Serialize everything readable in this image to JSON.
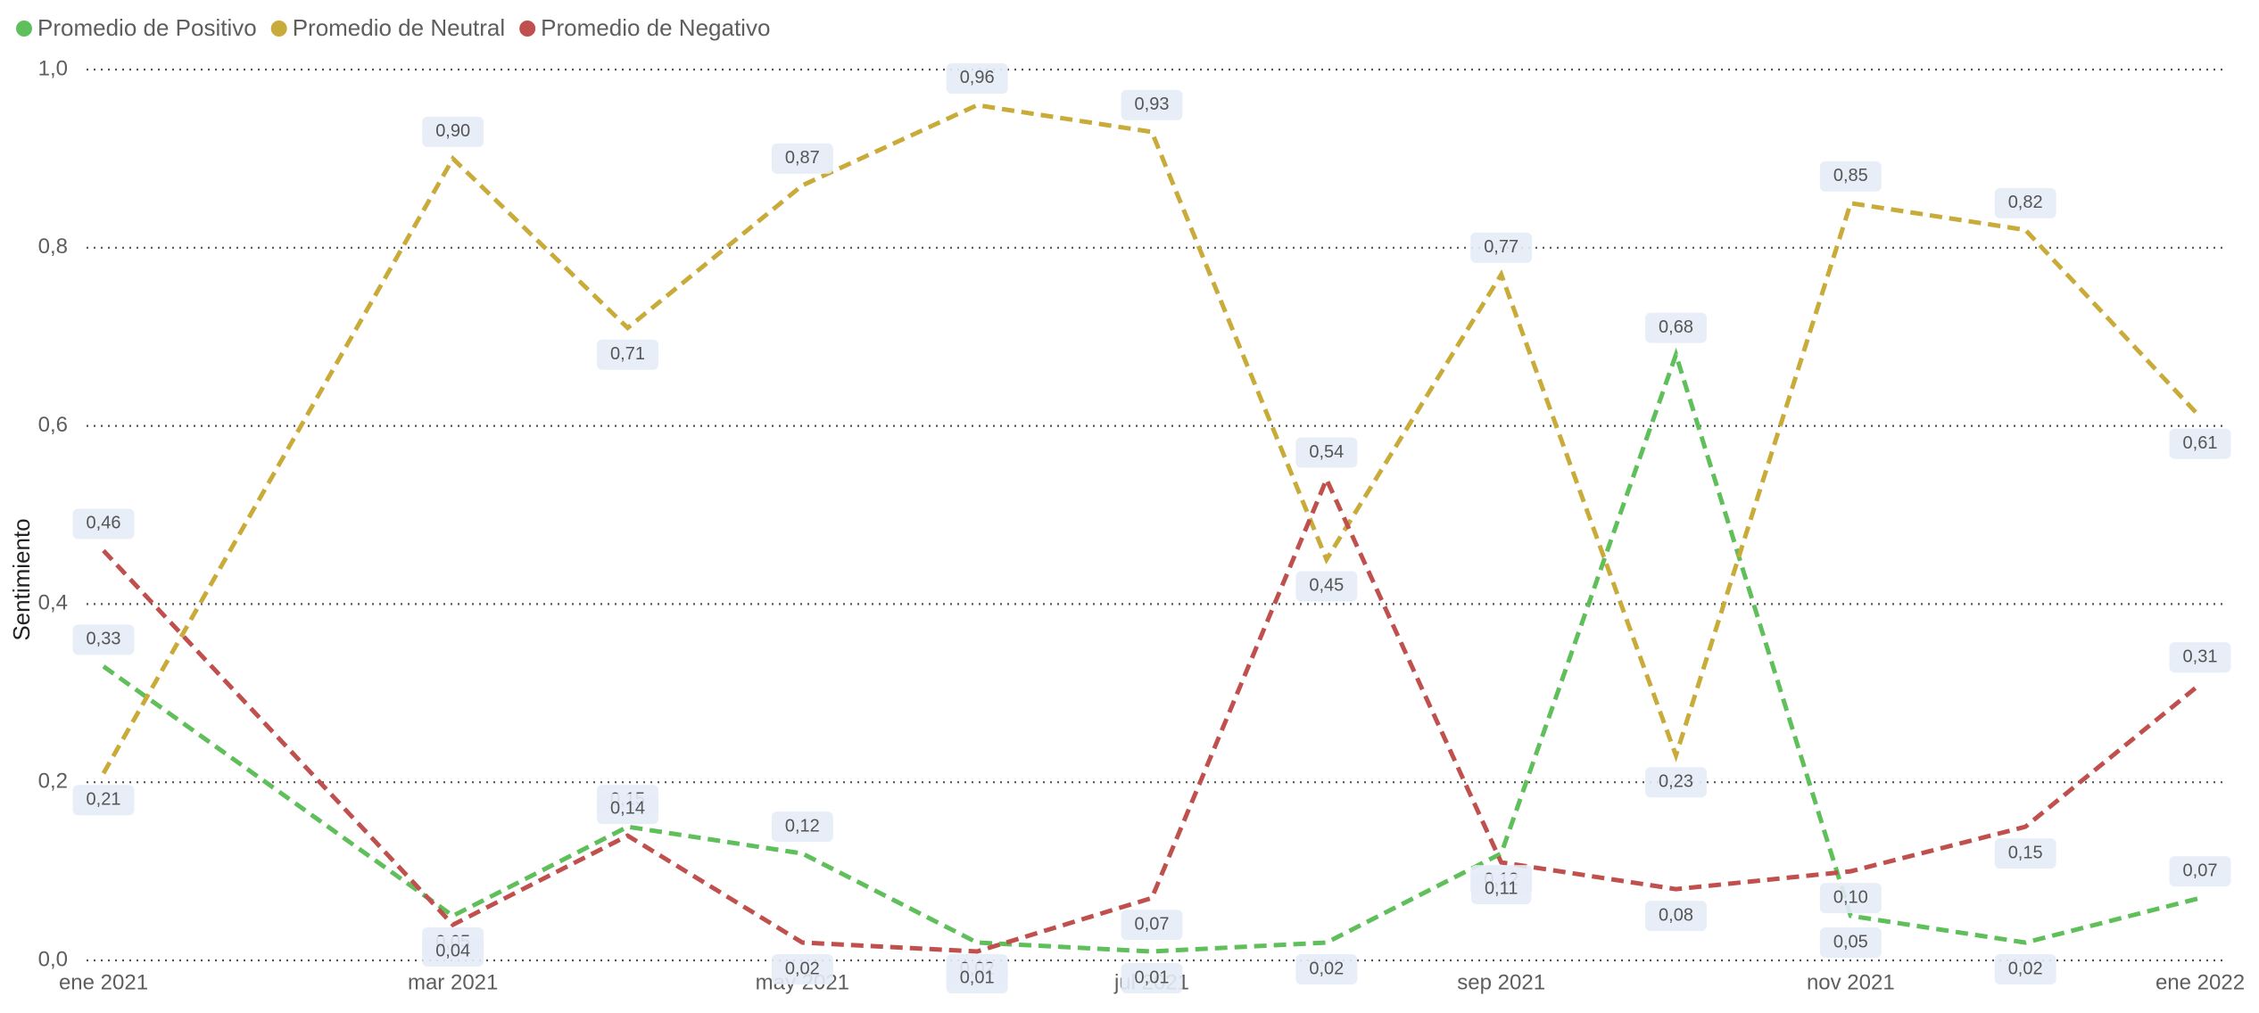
{
  "chart_data": {
    "type": "line",
    "y_label": "Sentimiento",
    "x": [
      0,
      2,
      3,
      4,
      5,
      6,
      7,
      8,
      9,
      10,
      11,
      12
    ],
    "xlim": [
      0,
      12
    ],
    "xticks": [
      {
        "value": 0,
        "label": "ene 2021"
      },
      {
        "value": 2,
        "label": "mar 2021"
      },
      {
        "value": 4,
        "label": "may 2021"
      },
      {
        "value": 6,
        "label": "jul 2021"
      },
      {
        "value": 8,
        "label": "sep 2021"
      },
      {
        "value": 10,
        "label": "nov 2021"
      },
      {
        "value": 12,
        "label": "ene 2022"
      }
    ],
    "ylim": [
      0,
      1
    ],
    "yticks": [
      {
        "value": 0,
        "label": "0,0"
      },
      {
        "value": 0.2,
        "label": "0,2"
      },
      {
        "value": 0.4,
        "label": "0,4"
      },
      {
        "value": 0.6,
        "label": "0,6"
      },
      {
        "value": 0.8,
        "label": "0,8"
      },
      {
        "value": 1,
        "label": "1,0"
      }
    ],
    "grid": true,
    "legend": "top-left",
    "series": [
      {
        "name": "Promedio de Positivo",
        "color": "#5fbf5a",
        "values": [
          0.33,
          0.05,
          0.15,
          0.12,
          0.02,
          0.01,
          0.02,
          0.12,
          0.68,
          0.05,
          0.02,
          0.07
        ],
        "value_labels": [
          "0,33",
          "0,05",
          "0,15",
          "0,12",
          "0,02",
          "0,01",
          "0,02",
          "0,12",
          "0,68",
          "0,05",
          "0,02",
          "0,07"
        ]
      },
      {
        "name": "Promedio de Neutral",
        "color": "#c9ab3a",
        "values": [
          0.21,
          0.9,
          0.71,
          0.87,
          0.96,
          0.93,
          0.45,
          0.77,
          0.23,
          0.85,
          0.82,
          0.61
        ],
        "value_labels": [
          "0,21",
          "0,90",
          "0,71",
          "0,87",
          "0,96",
          "0,93",
          "0,45",
          "0,77",
          "0,23",
          "0,85",
          "0,82",
          "0,61"
        ]
      },
      {
        "name": "Promedio de Negativo",
        "color": "#c0504d",
        "values": [
          0.46,
          0.04,
          0.14,
          0.02,
          0.01,
          0.07,
          0.54,
          0.11,
          0.08,
          0.1,
          0.15,
          0.31
        ],
        "value_labels": [
          "0,46",
          "0,04",
          "0,14",
          "0,02",
          "0,01",
          "0,07",
          "0,54",
          "0,11",
          "0,08",
          "0,10",
          "0,15",
          "0,31"
        ]
      }
    ]
  }
}
